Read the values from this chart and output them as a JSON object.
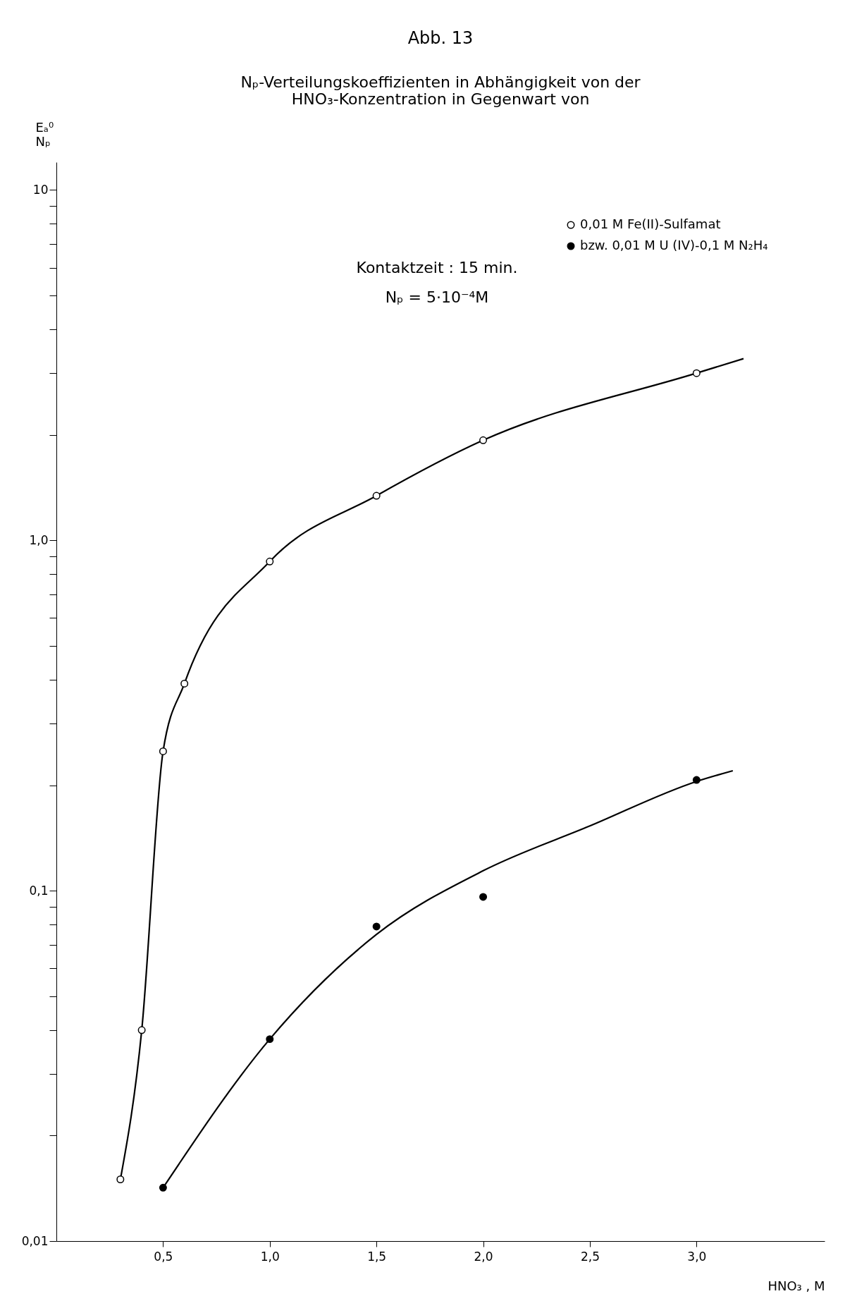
{
  "chart_data": {
    "type": "scatter",
    "title": "Abb. 13",
    "subtitle": "Nₚ-Verteilungskoeffizienten in Abhängigkeit von der\nHNO₃-Konzentration in Gegenwart von",
    "xlabel": "HNO₃ , M",
    "ylabel": "Eₐ⁰\nNₚ",
    "log": "y",
    "legend": "top right",
    "xlim": [
      0,
      3.6
    ],
    "ylim": [
      0.01,
      12
    ],
    "xticks": [
      {
        "value": 0.5,
        "label": "0,5"
      },
      {
        "value": 1,
        "label": "1,0"
      },
      {
        "value": 1.5,
        "label": "1,5"
      },
      {
        "value": 2,
        "label": "2,0"
      },
      {
        "value": 2.5,
        "label": "2,5"
      },
      {
        "value": 3,
        "label": "3,0"
      }
    ],
    "yticks": [
      {
        "value": 0.01,
        "label": "0,01"
      },
      {
        "value": 0.02,
        "label": null
      },
      {
        "value": 0.03,
        "label": null
      },
      {
        "value": 0.04,
        "label": null
      },
      {
        "value": 0.05,
        "label": null
      },
      {
        "value": 0.06,
        "label": null
      },
      {
        "value": 0.07,
        "label": null
      },
      {
        "value": 0.08,
        "label": null
      },
      {
        "value": 0.09,
        "label": null
      },
      {
        "value": 0.1,
        "label": "0,1"
      },
      {
        "value": 0.2,
        "label": null
      },
      {
        "value": 0.3,
        "label": null
      },
      {
        "value": 0.4,
        "label": null
      },
      {
        "value": 0.5,
        "label": null
      },
      {
        "value": 0.6,
        "label": null
      },
      {
        "value": 0.7,
        "label": null
      },
      {
        "value": 0.8,
        "label": null
      },
      {
        "value": 0.9,
        "label": null
      },
      {
        "value": 1,
        "label": "1,0"
      },
      {
        "value": 2,
        "label": null
      },
      {
        "value": 3,
        "label": null
      },
      {
        "value": 4,
        "label": null
      },
      {
        "value": 5,
        "label": null
      },
      {
        "value": 6,
        "label": null
      },
      {
        "value": 7,
        "label": null
      },
      {
        "value": 8,
        "label": null
      },
      {
        "value": 9,
        "label": null
      },
      {
        "value": 10,
        "label": "10"
      }
    ],
    "annotations": [
      "Kontaktzeit : 15 min.",
      "Nₚ = 5·10⁻⁴M"
    ],
    "series": [
      {
        "type": "line",
        "color": "#000000",
        "line_style": "solid",
        "x": [
          0.3,
          0.4,
          0.5,
          0.6,
          1.0,
          1.5,
          2.0,
          3.0,
          3.22
        ],
        "values": [
          0.015,
          0.04,
          0.25,
          0.39,
          0.87,
          1.34,
          1.93,
          3.0,
          3.3
        ]
      },
      {
        "type": "line",
        "color": "#000000",
        "line_style": "solid",
        "x": [
          0.5,
          1.0,
          1.5,
          2.0,
          2.5,
          3.0,
          3.17
        ],
        "values": [
          0.0142,
          0.0377,
          0.075,
          0.114,
          0.153,
          0.205,
          0.22
        ]
      },
      {
        "marker": "circle",
        "name": "0,01 M Fe(II)-Sulfamat",
        "color": "#ffffff",
        "x": [
          0.3,
          0.4,
          0.5,
          0.6,
          1.0,
          1.5,
          2.0,
          3.0
        ],
        "values": [
          0.015,
          0.04,
          0.25,
          0.39,
          0.87,
          1.34,
          1.93,
          3.0
        ]
      },
      {
        "marker": "circle",
        "name": "bzw. 0,01 M U (IV)-0,1 M N₂H₄",
        "color": "#000000",
        "x": [
          0.5,
          1.0,
          1.5,
          2.0,
          3.0
        ],
        "values": [
          0.0142,
          0.0377,
          0.079,
          0.096,
          0.207
        ]
      }
    ]
  }
}
